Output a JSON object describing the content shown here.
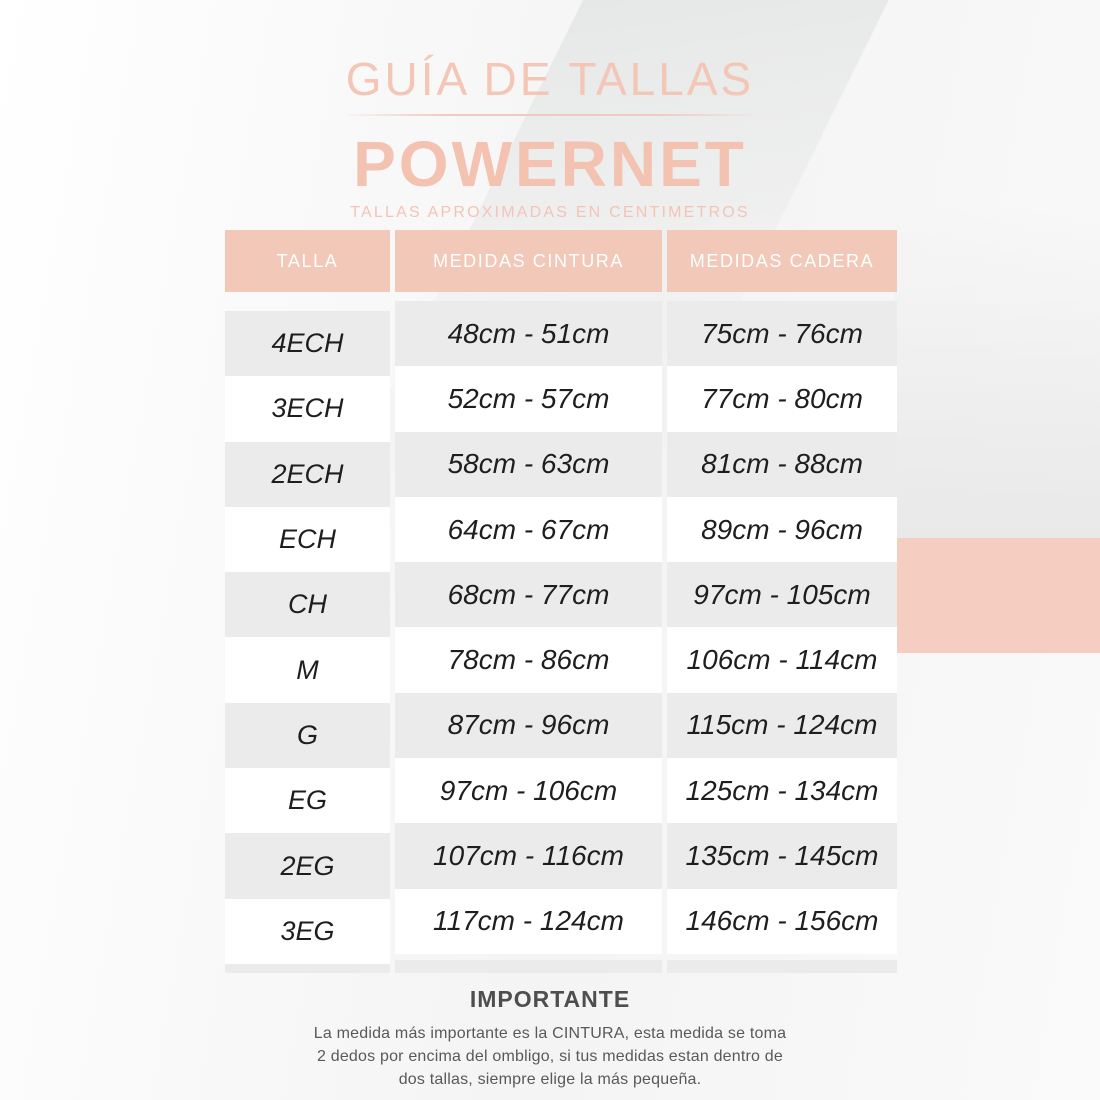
{
  "header": {
    "title": "GUÍA DE TALLAS",
    "brand": "POWERNET",
    "subtitle": "TALLAS APROXIMADAS EN CENTIMETROS"
  },
  "table": {
    "columns": [
      "TALLA",
      "MEDIDAS CINTURA",
      "MEDIDAS CADERA"
    ],
    "rows": [
      {
        "talla": "4ECH",
        "cintura": "48cm - 51cm",
        "cadera": "75cm - 76cm"
      },
      {
        "talla": "3ECH",
        "cintura": "52cm - 57cm",
        "cadera": "77cm - 80cm"
      },
      {
        "talla": "2ECH",
        "cintura": "58cm - 63cm",
        "cadera": "81cm - 88cm"
      },
      {
        "talla": "ECH",
        "cintura": "64cm - 67cm",
        "cadera": "89cm - 96cm"
      },
      {
        "talla": "CH",
        "cintura": "68cm - 77cm",
        "cadera": "97cm - 105cm"
      },
      {
        "talla": "M",
        "cintura": "78cm - 86cm",
        "cadera": "106cm - 114cm"
      },
      {
        "talla": "G",
        "cintura": "87cm - 96cm",
        "cadera": "115cm - 124cm"
      },
      {
        "talla": "EG",
        "cintura": "97cm - 106cm",
        "cadera": "125cm - 134cm"
      },
      {
        "talla": "2EG",
        "cintura": "107cm - 116cm",
        "cadera": "135cm - 145cm"
      },
      {
        "talla": "3EG",
        "cintura": "117cm - 124cm",
        "cadera": "146cm - 156cm"
      }
    ]
  },
  "footer": {
    "heading": "IMPORTANTE",
    "note_lines": [
      "La medida más importante es la CINTURA, esta medida se toma",
      "2 dedos por encima del ombligo, si tus medidas estan dentro de",
      "dos tallas, siempre elige la más pequeña."
    ]
  },
  "colors": {
    "accent_pink_header": "#f2c8b9",
    "accent_pink_title": "#f4c6b6",
    "accent_pink_rectangle": "#f5cec1",
    "row_gray": "#ebebeb",
    "data_text": "#1e1e1e",
    "note_text": "#59595b"
  }
}
